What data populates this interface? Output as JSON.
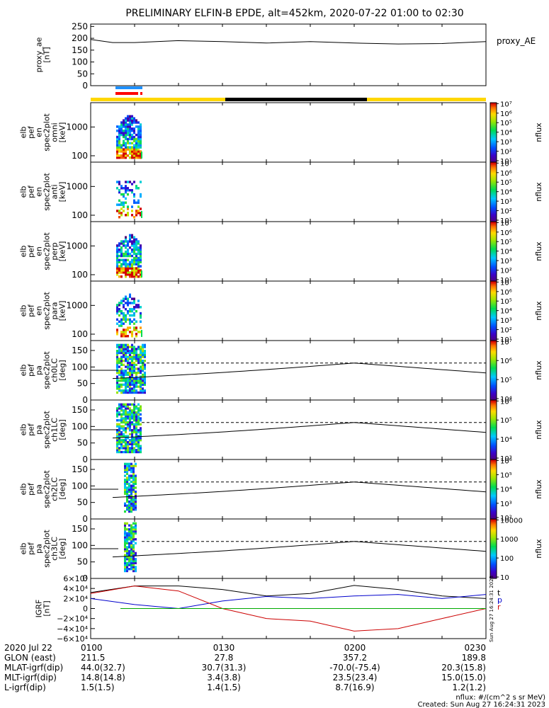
{
  "title": "PRELIMINARY ELFIN-B EPDE, alt=452km, 2020-07-22 01:00 to 02:30",
  "colors": {
    "spec_hot": "#c00000",
    "blue_bar": "#1e90ff",
    "red_bar": "#ff0000",
    "yellow_bar": "#ffd700",
    "black_bar": "#000000",
    "bx": "#0000cc",
    "by": "#cc0000",
    "bz": "#00aa00"
  },
  "side_stamp": "Sun Aug 27 16:24:31 2023",
  "footer": {
    "flux_units": "nflux: #/(cm^2 s sr MeV)",
    "created": "Created: Sun Aug 27 16:24:31 2023"
  },
  "annotations": {
    "rows": [
      {
        "label": "2020 Jul 22",
        "values": [
          "0100",
          "0130",
          "0200",
          "0230"
        ]
      },
      {
        "label": "GLON (east)",
        "values": [
          "211.5",
          "27.8",
          "357.2",
          "189.8"
        ]
      },
      {
        "label": "MLAT-igrf(dip)",
        "values": [
          "44.0(32.7)",
          "30.7(31.3)",
          "-70.0(-75.4)",
          "20.3(15.8)"
        ]
      },
      {
        "label": "MLT-igrf(dip)",
        "values": [
          "14.8(14.8)",
          "3.4(3.8)",
          "23.5(23.4)",
          "15.0(15.0)"
        ]
      },
      {
        "label": "L-igrf(dip)",
        "values": [
          "1.5(1.5)",
          "1.4(1.5)",
          "8.7(16.9)",
          "1.2(1.2)"
        ]
      }
    ]
  },
  "chart_data": [
    {
      "type": "line",
      "ylabel_lines": [
        "proxy_ae",
        "[nT]"
      ],
      "legend": "proxy_AE",
      "ylim": [
        0,
        260
      ],
      "yticks": [
        "0",
        "50",
        "100",
        "150",
        "200",
        "250"
      ],
      "x_minutes": [
        0,
        5,
        10,
        20,
        30,
        40,
        50,
        60,
        70,
        80,
        90
      ],
      "series": [
        {
          "values": [
            195,
            182,
            182,
            190,
            186,
            180,
            186,
            180,
            176,
            178,
            186
          ]
        }
      ]
    },
    {
      "type": "heatmap",
      "name": "omni",
      "ylabel_lines": [
        "elb",
        "pef",
        "en",
        "spec2plot",
        "omni",
        "[keV]"
      ],
      "yscale": "log",
      "ylim": [
        60,
        7000
      ],
      "yticks": [
        "100",
        "1000"
      ],
      "colorbar": {
        "label": "nflux",
        "ticks": [
          "10¹",
          "10²",
          "10³",
          "10⁴",
          "10⁵",
          "10⁶",
          "10⁷"
        ]
      }
    },
    {
      "type": "heatmap",
      "name": "anti",
      "ylabel_lines": [
        "elb",
        "pef",
        "en",
        "spec2plot",
        "anti",
        "[keV]"
      ],
      "yscale": "log",
      "ylim": [
        60,
        7000
      ],
      "yticks": [
        "100",
        "1000"
      ],
      "colorbar": {
        "label": "nflux",
        "ticks": [
          "10¹",
          "10²",
          "10³",
          "10⁴",
          "10⁵",
          "10⁶",
          "10⁷"
        ]
      }
    },
    {
      "type": "heatmap",
      "name": "perp",
      "ylabel_lines": [
        "elb",
        "pef",
        "en",
        "spec2plot",
        "perp",
        "[keV]"
      ],
      "yscale": "log",
      "ylim": [
        60,
        7000
      ],
      "yticks": [
        "100",
        "1000"
      ],
      "colorbar": {
        "label": "nflux",
        "ticks": [
          "10¹",
          "10²",
          "10³",
          "10⁴",
          "10⁵",
          "10⁶",
          "10⁷"
        ]
      }
    },
    {
      "type": "heatmap",
      "name": "para",
      "ylabel_lines": [
        "elb",
        "pef",
        "en",
        "spec2plot",
        "para",
        "[keV]"
      ],
      "yscale": "log",
      "ylim": [
        60,
        7000
      ],
      "yticks": [
        "100",
        "1000"
      ],
      "colorbar": {
        "label": "nflux",
        "ticks": [
          "10¹",
          "10²",
          "10³",
          "10⁴",
          "10⁵",
          "10⁶",
          "10⁷"
        ]
      }
    },
    {
      "type": "heatmap",
      "name": "ch0LC",
      "ylabel_lines": [
        "elb",
        "pef",
        "pa",
        "spec2plot",
        "ch0LC",
        "[deg]"
      ],
      "ylim": [
        0,
        180
      ],
      "yticks": [
        "0",
        "50",
        "100",
        "150"
      ],
      "colorbar": {
        "label": "nflux",
        "ticks": [
          "10⁴",
          "10⁵",
          "10⁶",
          "10⁷"
        ]
      }
    },
    {
      "type": "heatmap",
      "name": "ch1LC",
      "ylabel_lines": [
        "elb",
        "pef",
        "pa",
        "spec2plot",
        "ch1LC",
        "[deg]"
      ],
      "ylim": [
        0,
        180
      ],
      "yticks": [
        "0",
        "50",
        "100",
        "150"
      ],
      "colorbar": {
        "label": "nflux",
        "ticks": [
          "10³",
          "10⁴",
          "10⁵",
          "10⁶"
        ]
      }
    },
    {
      "type": "heatmap",
      "name": "ch2LC",
      "ylabel_lines": [
        "elb",
        "pef",
        "pa",
        "spec2plot",
        "ch2LC",
        "[deg]"
      ],
      "ylim": [
        0,
        180
      ],
      "yticks": [
        "0",
        "50",
        "100",
        "150"
      ],
      "colorbar": {
        "label": "nflux",
        "ticks": [
          "10²",
          "10³",
          "10⁴",
          "10⁵",
          "10⁶"
        ]
      }
    },
    {
      "type": "heatmap",
      "name": "ch3LC",
      "ylabel_lines": [
        "elb",
        "pef",
        "pa",
        "spec2plot",
        "ch3LC",
        "[deg]"
      ],
      "ylim": [
        0,
        180
      ],
      "yticks": [
        "0",
        "50",
        "100",
        "150"
      ],
      "colorbar": {
        "label": "nflux",
        "ticks": [
          "10",
          "100",
          "1000",
          "10000"
        ]
      }
    },
    {
      "type": "line",
      "name": "IGRF",
      "ylabel_lines": [
        "IGRF",
        "[nT]"
      ],
      "ylim": [
        -60000,
        60000
      ],
      "yticks": [
        "−6×10⁴",
        "−4×10⁴",
        "−2×10⁴",
        "0",
        "2×10⁴",
        "4×10⁴",
        "6×10⁴"
      ],
      "legend": [
        "t",
        "p",
        "r"
      ],
      "x_minutes": [
        0,
        10,
        20,
        30,
        40,
        50,
        60,
        70,
        80,
        90
      ],
      "series": [
        {
          "name": "t",
          "values": [
            32000,
            45000,
            45000,
            38000,
            25000,
            30000,
            46000,
            38000,
            25000,
            20000
          ]
        },
        {
          "name": "p",
          "values": [
            20000,
            8000,
            0,
            15000,
            24000,
            20000,
            25000,
            28000,
            20000,
            28000
          ]
        },
        {
          "name": "r",
          "values": [
            30000,
            45000,
            35000,
            0,
            -20000,
            -25000,
            -45000,
            -40000,
            -20000,
            0
          ]
        }
      ]
    }
  ]
}
